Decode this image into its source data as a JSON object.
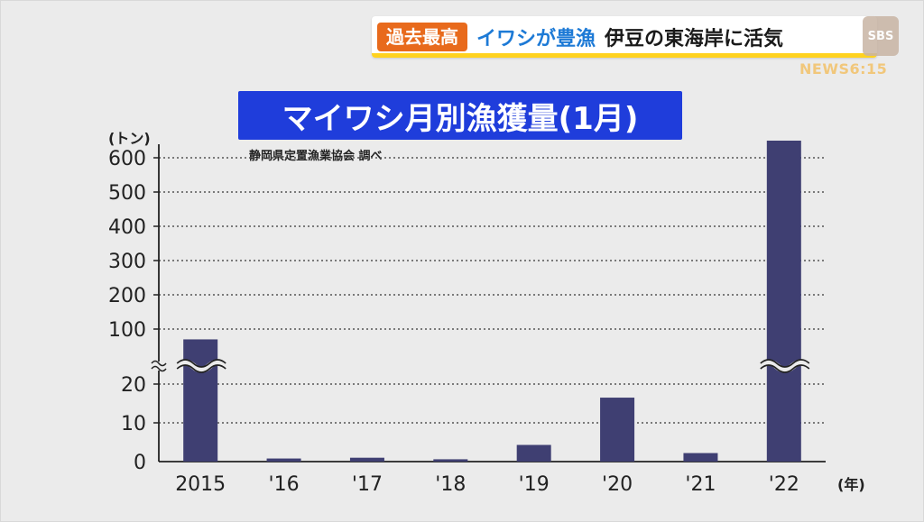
{
  "banner": {
    "tag": "過去最高",
    "headline_a": "イワシが豊漁",
    "headline_b": "伊豆の東海岸に活気",
    "logo": "SBS",
    "news_logo": "NEWS6:15"
  },
  "chart_data": {
    "type": "bar",
    "title": "マイワシ月別漁獲量(1月)",
    "source": "静岡県定置漁業協会 調べ",
    "ylabel": "(トン)",
    "xlabel": "(年)",
    "categories": [
      "2015",
      "'16",
      "'17",
      "'18",
      "'19",
      "'20",
      "'21",
      "'22"
    ],
    "values": [
      85,
      0.8,
      1.0,
      0.6,
      4.3,
      16.5,
      2.2,
      650
    ],
    "y_ticks_lower": [
      0,
      10,
      20
    ],
    "y_ticks_upper": [
      100,
      200,
      300,
      400,
      500,
      600
    ],
    "axis_break": "between 20 and 100",
    "grid": "dotted horizontal",
    "colors": {
      "bar": "#3f3f72",
      "background": "#ebebeb"
    }
  }
}
